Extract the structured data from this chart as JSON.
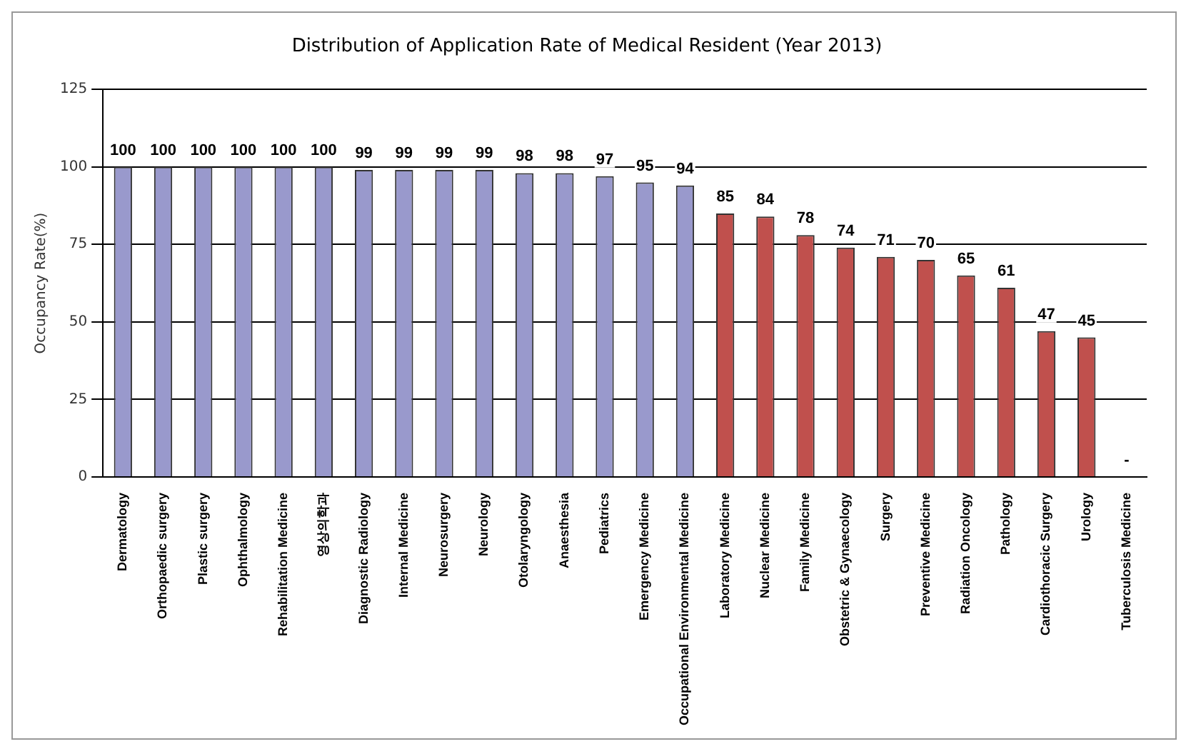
{
  "chart_data": {
    "type": "bar",
    "title": "Distribution of Application Rate of Medical Resident (Year 2013)",
    "ylabel": "Occupancy Rate(%)",
    "categories": [
      "Dermatology",
      "Orthopaedic surgery",
      "Plastic surgery",
      "Ophthalmology",
      "Rehabilitation Medicine",
      "영상의학과",
      "Diagnostic Radiology",
      "Internal Medicine",
      "Neurosurgery",
      "Neurology",
      "Otolaryngology",
      "Anaesthesia",
      "Pediatrics",
      "Emergency Medicine",
      "Occupational Environmental Medicine",
      "Laboratory Medicine",
      "Nuclear Medicine",
      "Family Medicine",
      "Obstetric & Gynaecology",
      "Surgery",
      "Preventive Medicine",
      "Radiation Oncology",
      "Pathology",
      "Cardiothoracic Surgery",
      "Urology",
      "Tuberculosis Medicine"
    ],
    "values": [
      100,
      100,
      100,
      100,
      100,
      100,
      99,
      99,
      99,
      99,
      98,
      98,
      97,
      95,
      94,
      85,
      84,
      78,
      74,
      71,
      70,
      65,
      61,
      47,
      45,
      null
    ],
    "value_labels": [
      "100",
      "100",
      "100",
      "100",
      "100",
      "100",
      "99",
      "99",
      "99",
      "99",
      "98",
      "98",
      "97",
      "95",
      "94",
      "85",
      "84",
      "78",
      "74",
      "71",
      "70",
      "65",
      "61",
      "47",
      "45",
      "-"
    ],
    "colors": [
      "#9999cc",
      "#9999cc",
      "#9999cc",
      "#9999cc",
      "#9999cc",
      "#9999cc",
      "#9999cc",
      "#9999cc",
      "#9999cc",
      "#9999cc",
      "#9999cc",
      "#9999cc",
      "#9999cc",
      "#9999cc",
      "#9999cc",
      "#c0504d",
      "#c0504d",
      "#c0504d",
      "#c0504d",
      "#c0504d",
      "#c0504d",
      "#c0504d",
      "#c0504d",
      "#c0504d",
      "#c0504d",
      "#c0504d"
    ],
    "ylim": [
      0,
      125
    ],
    "yticks": [
      0,
      25,
      50,
      75,
      100,
      125
    ],
    "grid": "y",
    "legend": false
  }
}
